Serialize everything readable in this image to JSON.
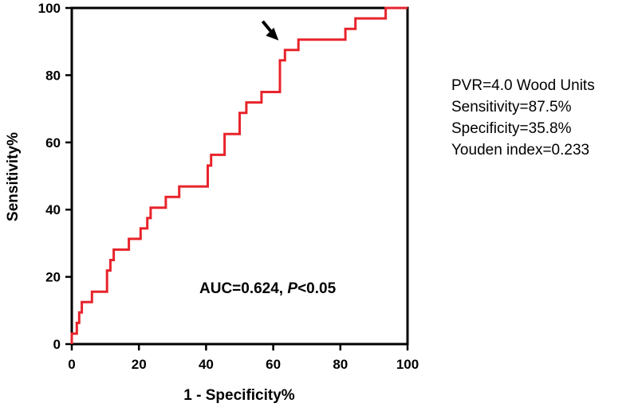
{
  "chart_data": {
    "type": "line",
    "title": "",
    "xlabel": "1 - Specificity%",
    "ylabel": "Sensitivity%",
    "xlim": [
      0,
      100
    ],
    "ylim": [
      0,
      100
    ],
    "xticks": [
      "0",
      "20",
      "40",
      "60",
      "80",
      "100"
    ],
    "yticks": [
      "0",
      "20",
      "40",
      "60",
      "80",
      "100"
    ],
    "grid": false,
    "legend": "none",
    "series": [
      {
        "color": "#e8232b",
        "x": [
          0,
          0,
          1.5,
          1.5,
          2.2,
          2.2,
          3.0,
          3.0,
          6.0,
          6.0,
          10.5,
          10.5,
          11.5,
          11.5,
          12.5,
          12.5,
          14.5,
          14.5,
          17.0,
          17.0,
          20.5,
          20.5,
          21.5,
          21.5,
          22.5,
          22.5,
          23.5,
          23.5,
          28.0,
          28.0,
          32.0,
          32.0,
          40.5,
          40.5,
          41.5,
          41.5,
          45.5,
          45.5,
          50.0,
          50.0,
          52.0,
          52.0,
          56.5,
          56.5,
          62.0,
          62.0,
          63.5,
          63.5,
          65.5,
          65.5,
          67.5,
          67.5,
          81.5,
          81.5,
          84.5,
          84.5,
          87.5,
          87.5,
          93.5,
          93.5,
          100
        ],
        "y": [
          0,
          3.1,
          3.1,
          6.3,
          6.3,
          9.4,
          9.4,
          12.5,
          12.5,
          15.6,
          15.6,
          21.9,
          21.9,
          25.0,
          25.0,
          28.1,
          28.1,
          28.1,
          28.1,
          31.3,
          31.3,
          34.4,
          34.4,
          34.4,
          34.4,
          37.5,
          37.5,
          40.6,
          40.6,
          43.8,
          43.8,
          46.9,
          46.9,
          53.1,
          53.1,
          56.3,
          56.3,
          62.5,
          62.5,
          68.8,
          68.8,
          71.9,
          71.9,
          75.0,
          75.0,
          84.4,
          84.4,
          87.5,
          87.5,
          87.5,
          87.5,
          90.6,
          90.6,
          93.8,
          93.8,
          96.9,
          96.9,
          96.9,
          96.9,
          100,
          100
        ]
      }
    ],
    "annotations": {
      "auc_label": "AUC=0.624, ",
      "p_symbol": "P",
      "p_value": "<0.05",
      "cutoff_lines": [
        "PVR=4.0 Wood Units",
        "Sensitivity=87.5%",
        "Specificity=35.8%",
        "Youden index=0.233"
      ],
      "arrow_target": {
        "x": 63.5,
        "y": 87.5
      }
    }
  }
}
